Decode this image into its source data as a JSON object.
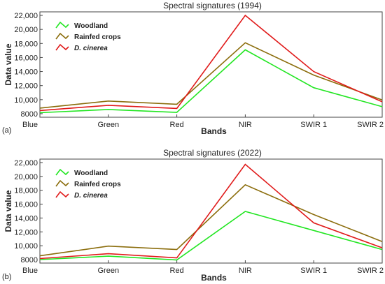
{
  "chart_data": [
    {
      "type": "line",
      "panel_label": "(a)",
      "title": "Spectral signatures (1994)",
      "xlabel": "Bands",
      "ylabel": "Data value",
      "categories": [
        "Blue",
        "Green",
        "Red",
        "NIR",
        "SWIR 1",
        "SWIR 2"
      ],
      "ylim": [
        7500,
        22500
      ],
      "yticks": [
        8000,
        10000,
        12000,
        14000,
        16000,
        18000,
        20000,
        22000
      ],
      "ytick_labels": [
        "8000",
        "10,000",
        "12,000",
        "14,000",
        "16,000",
        "18,000",
        "20,000",
        "22,000"
      ],
      "legend_position": "top-left",
      "series": [
        {
          "name": "Woodland",
          "color": "#22e622",
          "values": [
            8150,
            8600,
            8200,
            17100,
            11700,
            9000
          ]
        },
        {
          "name": "Rainfed crops",
          "color": "#8b6d0c",
          "values": [
            8800,
            9800,
            9350,
            18100,
            13500,
            9950
          ]
        },
        {
          "name": "D. cinerea",
          "color": "#e01a1a",
          "italic": true,
          "values": [
            8450,
            9200,
            8750,
            22000,
            14000,
            9700
          ]
        }
      ]
    },
    {
      "type": "line",
      "panel_label": "(b)",
      "title": "Spectral signatures (2022)",
      "xlabel": "Bands",
      "ylabel": "Data value",
      "categories": [
        "Blue",
        "Green",
        "Red",
        "NIR",
        "SWIR 1",
        "SWIR 2"
      ],
      "ylim": [
        7500,
        22500
      ],
      "yticks": [
        8000,
        10000,
        12000,
        14000,
        16000,
        18000,
        20000,
        22000
      ],
      "ytick_labels": [
        "8000",
        "10,000",
        "12,000",
        "14,000",
        "16,000",
        "18,000",
        "20,000",
        "22,000"
      ],
      "legend_position": "top-left",
      "series": [
        {
          "name": "Woodland",
          "color": "#22e622",
          "values": [
            8000,
            8500,
            7950,
            14950,
            12200,
            9450
          ]
        },
        {
          "name": "Rainfed crops",
          "color": "#8b6d0c",
          "values": [
            8550,
            9950,
            9450,
            18800,
            14500,
            10600
          ]
        },
        {
          "name": "D. cinerea",
          "color": "#e01a1a",
          "italic": true,
          "values": [
            8150,
            8850,
            8250,
            21750,
            13300,
            9700
          ]
        }
      ]
    }
  ]
}
